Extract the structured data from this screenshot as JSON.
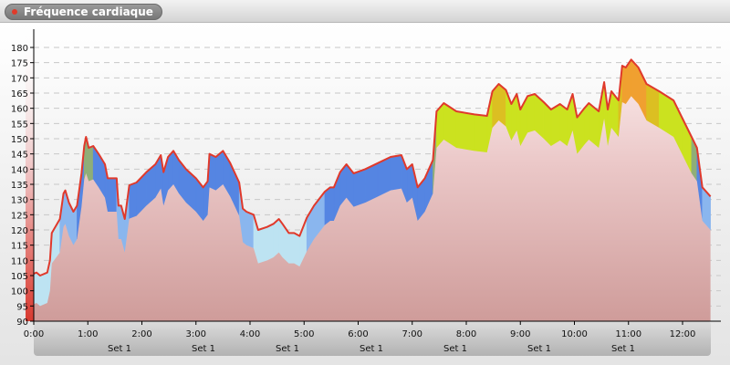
{
  "header": {
    "title": "Fréquence cardiaque"
  },
  "chart_data": {
    "type": "area",
    "title": "Fréquence cardiaque",
    "xlabel": "",
    "ylabel": "",
    "ylim": [
      90,
      186
    ],
    "xlim": [
      "0:00",
      "12:31"
    ],
    "y_ticks": [
      90,
      95,
      100,
      105,
      110,
      115,
      120,
      125,
      130,
      135,
      140,
      145,
      150,
      155,
      160,
      165,
      170,
      175,
      180
    ],
    "x_ticks": [
      "0:00",
      "1:00",
      "2:00",
      "3:00",
      "4:00",
      "5:00",
      "6:00",
      "7:00",
      "8:00",
      "9:00",
      "10:00",
      "11:00",
      "12:00"
    ],
    "segment_labels": [
      "Set 1",
      "Set 1",
      "Set 1",
      "Set 1",
      "Set 1",
      "Set 1",
      "Set 1"
    ],
    "grid": true,
    "line_color": "#e0392b",
    "zones": [
      {
        "min": 0,
        "color": "#bde3f2"
      },
      {
        "min": 125,
        "color": "#8ab6ee"
      },
      {
        "min": 133,
        "color": "#5585e2"
      },
      {
        "min": 147,
        "color": "#8fae78"
      },
      {
        "min": 152,
        "color": "#cbe21f"
      },
      {
        "min": 165,
        "color": "#dcbf22"
      },
      {
        "min": 170,
        "color": "#f0a030"
      }
    ],
    "points": [
      [
        "0:00",
        105.6
      ],
      [
        "0:03",
        106
      ],
      [
        "0:07",
        105
      ],
      [
        "0:15",
        106
      ],
      [
        "0:18",
        110
      ],
      [
        "0:20",
        119
      ],
      [
        "0:29",
        123.6
      ],
      [
        "0:33",
        132
      ],
      [
        "0:35",
        133
      ],
      [
        "0:39",
        129
      ],
      [
        "0:44",
        126
      ],
      [
        "0:48",
        128
      ],
      [
        "0:53",
        138.6
      ],
      [
        "0:56",
        147.6
      ],
      [
        "0:58",
        150.6
      ],
      [
        "1:01",
        147
      ],
      [
        "1:06",
        147.6
      ],
      [
        "1:12",
        145
      ],
      [
        "1:19",
        141.6
      ],
      [
        "1:22",
        137
      ],
      [
        "1:32",
        137
      ],
      [
        "1:34",
        128
      ],
      [
        "1:37",
        128
      ],
      [
        "1:41",
        123.6
      ],
      [
        "1:46",
        134.7
      ],
      [
        "1:54",
        135.6
      ],
      [
        "2:05",
        139
      ],
      [
        "2:15",
        141.6
      ],
      [
        "2:21",
        144.6
      ],
      [
        "2:24",
        139
      ],
      [
        "2:29",
        144
      ],
      [
        "2:35",
        146
      ],
      [
        "2:41",
        143
      ],
      [
        "2:49",
        140
      ],
      [
        "3:00",
        137
      ],
      [
        "3:08",
        134
      ],
      [
        "3:13",
        136
      ],
      [
        "3:15",
        145
      ],
      [
        "3:22",
        144
      ],
      [
        "3:30",
        146
      ],
      [
        "3:38",
        142
      ],
      [
        "3:48",
        135.6
      ],
      [
        "3:52",
        127
      ],
      [
        "3:56",
        126
      ],
      [
        "4:04",
        125
      ],
      [
        "4:09",
        120
      ],
      [
        "4:19",
        121
      ],
      [
        "4:26",
        122
      ],
      [
        "4:32",
        123.6
      ],
      [
        "4:36",
        122
      ],
      [
        "4:43",
        119
      ],
      [
        "4:49",
        119
      ],
      [
        "4:55",
        118
      ],
      [
        "5:03",
        124
      ],
      [
        "5:11",
        128
      ],
      [
        "5:23",
        132.6
      ],
      [
        "5:29",
        134
      ],
      [
        "5:33",
        134
      ],
      [
        "5:40",
        139
      ],
      [
        "5:47",
        141.6
      ],
      [
        "5:55",
        138.6
      ],
      [
        "6:08",
        140
      ],
      [
        "6:22",
        142
      ],
      [
        "6:36",
        144
      ],
      [
        "6:48",
        144.6
      ],
      [
        "6:54",
        140
      ],
      [
        "7:00",
        141.6
      ],
      [
        "7:06",
        134
      ],
      [
        "7:14",
        137
      ],
      [
        "7:23",
        143
      ],
      [
        "7:27",
        159
      ],
      [
        "7:35",
        161.7
      ],
      [
        "7:49",
        159
      ],
      [
        "8:09",
        158
      ],
      [
        "8:23",
        157.5
      ],
      [
        "8:29",
        165.6
      ],
      [
        "8:36",
        168
      ],
      [
        "8:44",
        166
      ],
      [
        "8:50",
        161.4
      ],
      [
        "8:56",
        164.7
      ],
      [
        "9:00",
        159.6
      ],
      [
        "9:08",
        164
      ],
      [
        "9:16",
        164.7
      ],
      [
        "9:26",
        162
      ],
      [
        "9:34",
        159.6
      ],
      [
        "9:44",
        161.4
      ],
      [
        "9:52",
        159.6
      ],
      [
        "9:58",
        164.7
      ],
      [
        "10:03",
        157
      ],
      [
        "10:11",
        160
      ],
      [
        "10:16",
        161.7
      ],
      [
        "10:27",
        159
      ],
      [
        "10:33",
        168.6
      ],
      [
        "10:37",
        159.6
      ],
      [
        "10:41",
        165.6
      ],
      [
        "10:49",
        162.6
      ],
      [
        "10:53",
        174
      ],
      [
        "10:57",
        173.4
      ],
      [
        "11:03",
        176
      ],
      [
        "11:11",
        173.4
      ],
      [
        "11:20",
        168
      ],
      [
        "11:34",
        165.6
      ],
      [
        "11:50",
        162.6
      ],
      [
        "12:00",
        156.6
      ],
      [
        "12:10",
        150.6
      ],
      [
        "12:16",
        147
      ],
      [
        "12:22",
        134
      ],
      [
        "12:31",
        131
      ]
    ]
  }
}
